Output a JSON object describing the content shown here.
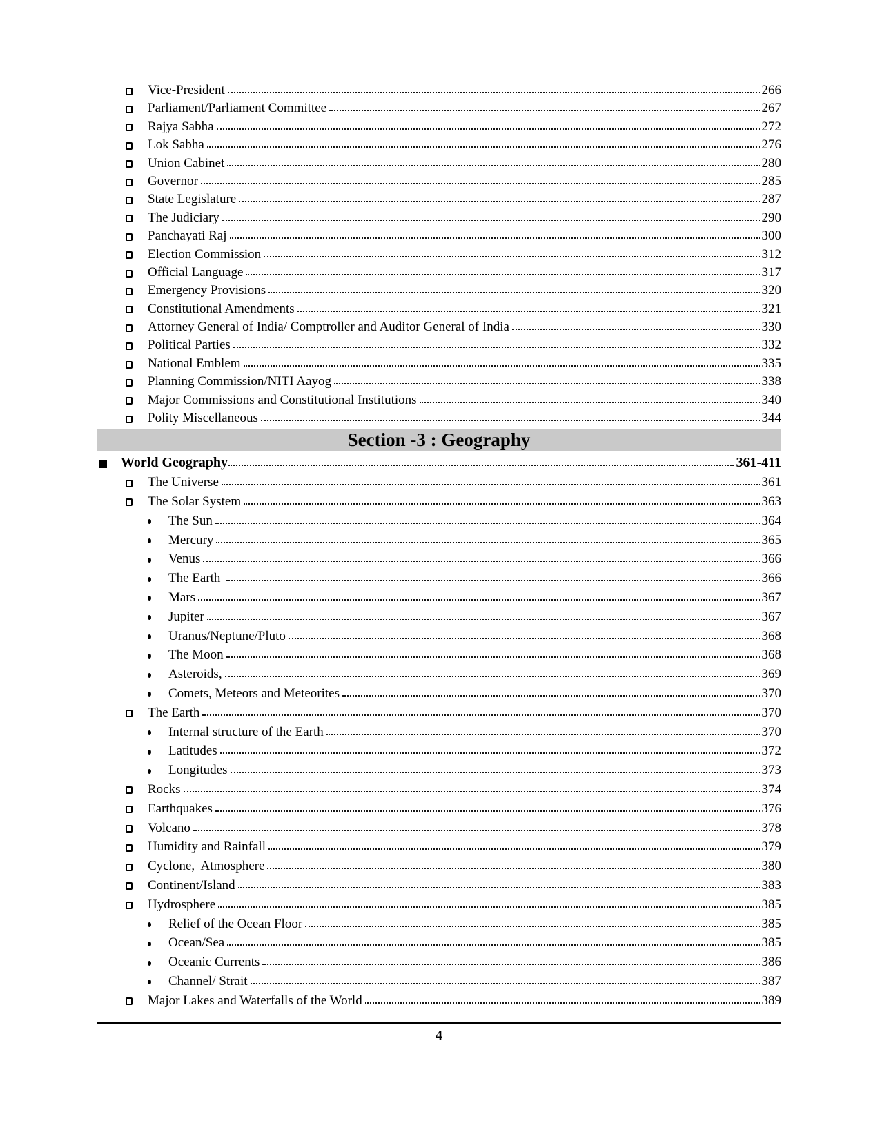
{
  "colors": {
    "section_band_bg": "#c9c9c9",
    "text": "#000000"
  },
  "footer": {
    "page_number": "4"
  },
  "toc": {
    "rows": [
      {
        "type": "entry",
        "level": 2,
        "label": "Vice-President",
        "page": "266"
      },
      {
        "type": "entry",
        "level": 2,
        "label": "Parliament/Parliament Committee",
        "page": "267"
      },
      {
        "type": "entry",
        "level": 2,
        "label": "Rajya Sabha",
        "page": "272"
      },
      {
        "type": "entry",
        "level": 2,
        "label": "Lok Sabha",
        "page": "276"
      },
      {
        "type": "entry",
        "level": 2,
        "label": "Union Cabinet",
        "page": "280"
      },
      {
        "type": "entry",
        "level": 2,
        "label": "Governor",
        "page": "285"
      },
      {
        "type": "entry",
        "level": 2,
        "label": "State Legislature",
        "page": "287"
      },
      {
        "type": "entry",
        "level": 2,
        "label": "The Judiciary",
        "page": "290"
      },
      {
        "type": "entry",
        "level": 2,
        "label": "Panchayati Raj",
        "page": "300"
      },
      {
        "type": "entry",
        "level": 2,
        "label": "Election Commission",
        "page": "312"
      },
      {
        "type": "entry",
        "level": 2,
        "label": "Official Language",
        "page": "317"
      },
      {
        "type": "entry",
        "level": 2,
        "label": "Emergency Provisions",
        "page": "320"
      },
      {
        "type": "entry",
        "level": 2,
        "label": "Constitutional Amendments",
        "page": "321"
      },
      {
        "type": "entry",
        "level": 2,
        "label": "Attorney General of India/ Comptroller and Auditor General of India",
        "page": "330"
      },
      {
        "type": "entry",
        "level": 2,
        "label": "Political Parties",
        "page": "332"
      },
      {
        "type": "entry",
        "level": 2,
        "label": "National Emblem",
        "page": "335"
      },
      {
        "type": "entry",
        "level": 2,
        "label": "Planning Commission/NITI Aayog",
        "page": "338"
      },
      {
        "type": "entry",
        "level": 2,
        "label": "Major Commissions and Constitutional Institutions",
        "page": "340"
      },
      {
        "type": "entry",
        "level": 2,
        "label": "Polity Miscellaneous",
        "page": "344"
      },
      {
        "type": "section",
        "label": "Section -3 : Geography"
      },
      {
        "type": "entry",
        "level": 1,
        "label": "World Geography",
        "page": "361-411"
      },
      {
        "type": "entry",
        "level": 2,
        "label": "The Universe",
        "page": "361"
      },
      {
        "type": "entry",
        "level": 2,
        "label": "The Solar System",
        "page": "363"
      },
      {
        "type": "entry",
        "level": 3,
        "label": "The Sun",
        "page": "364"
      },
      {
        "type": "entry",
        "level": 3,
        "label": "Mercury",
        "page": "365"
      },
      {
        "type": "entry",
        "level": 3,
        "label": "Venus",
        "page": "366"
      },
      {
        "type": "entry",
        "level": 3,
        "label": "The Earth ",
        "page": "366"
      },
      {
        "type": "entry",
        "level": 3,
        "label": "Mars",
        "page": "367"
      },
      {
        "type": "entry",
        "level": 3,
        "label": "Jupiter",
        "page": "367"
      },
      {
        "type": "entry",
        "level": 3,
        "label": "Uranus/Neptune/Pluto",
        "page": "368"
      },
      {
        "type": "entry",
        "level": 3,
        "label": "The Moon",
        "page": "368"
      },
      {
        "type": "entry",
        "level": 3,
        "label": "Asteroids,",
        "page": "369"
      },
      {
        "type": "entry",
        "level": 3,
        "label": "Comets, Meteors and Meteorites",
        "page": "370"
      },
      {
        "type": "entry",
        "level": 2,
        "label": "The Earth",
        "page": "370"
      },
      {
        "type": "entry",
        "level": 3,
        "label": "Internal structure of the Earth",
        "page": "370"
      },
      {
        "type": "entry",
        "level": 3,
        "label": "Latitudes",
        "page": "372"
      },
      {
        "type": "entry",
        "level": 3,
        "label": "Longitudes",
        "page": "373"
      },
      {
        "type": "entry",
        "level": 2,
        "label": "Rocks",
        "page": "374"
      },
      {
        "type": "entry",
        "level": 2,
        "label": "Earthquakes",
        "page": "376"
      },
      {
        "type": "entry",
        "level": 2,
        "label": "Volcano",
        "page": "378"
      },
      {
        "type": "entry",
        "level": 2,
        "label": "Humidity and Rainfall",
        "page": "379"
      },
      {
        "type": "entry",
        "level": 2,
        "label": "Cyclone,  Atmosphere",
        "page": "380"
      },
      {
        "type": "entry",
        "level": 2,
        "label": "Continent/Island",
        "page": "383"
      },
      {
        "type": "entry",
        "level": 2,
        "label": "Hydrosphere",
        "page": "385"
      },
      {
        "type": "entry",
        "level": 3,
        "label": "Relief of the Ocean Floor",
        "page": "385"
      },
      {
        "type": "entry",
        "level": 3,
        "label": "Ocean/Sea",
        "page": "385"
      },
      {
        "type": "entry",
        "level": 3,
        "label": "Oceanic Currents",
        "page": "386"
      },
      {
        "type": "entry",
        "level": 3,
        "label": "Channel/ Strait",
        "page": "387"
      },
      {
        "type": "entry",
        "level": 2,
        "label": "Major Lakes and Waterfalls of the World",
        "page": "389"
      }
    ]
  }
}
